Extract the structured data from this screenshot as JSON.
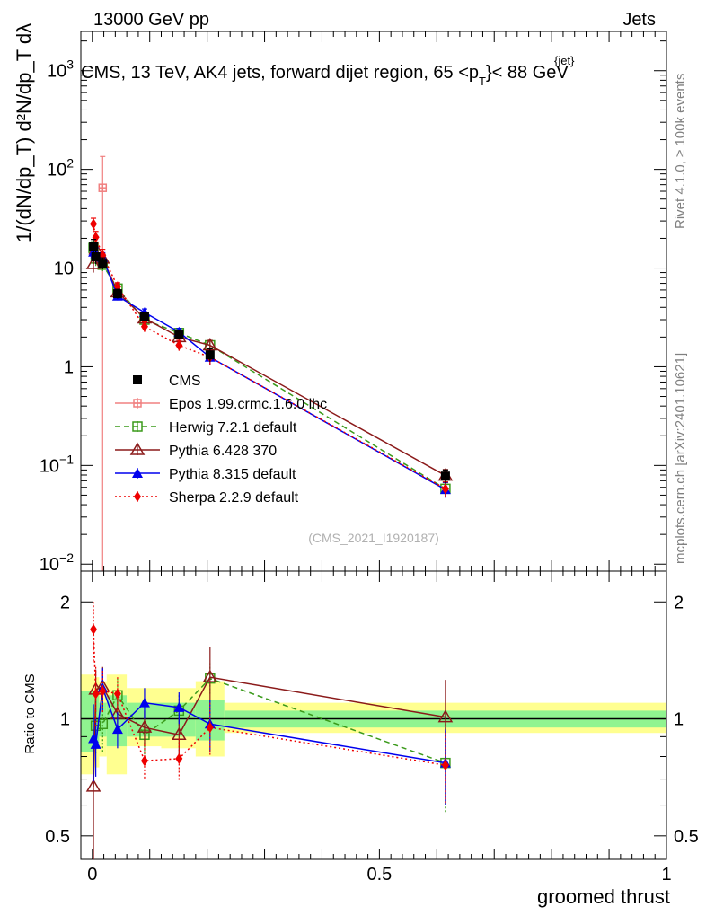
{
  "header": {
    "left": "13000 GeV pp",
    "right": "Jets",
    "title": "CMS, 13 TeV, AK4 jets, forward dijet region, 65 <p",
    "title_sup": "{jet}",
    "title_sub": "T",
    "title_end": "}< 88 GeV"
  },
  "side": {
    "rivet": "Rivet 4.1.0, ≥ 100k events",
    "mcplots": "mcplots.cern.ch [arXiv:2401.10621]"
  },
  "yaxis_top_label": "1/(dN/dp_T) d²N/dp_T dλ",
  "analysis_tag": "(CMS_2021_I1920187)",
  "colors": {
    "cms": "#000000",
    "epos": "#f08080",
    "herwig": "#3a9a1a",
    "pythia6": "#8b1a1a",
    "pythia8": "#0000ee",
    "sherpa": "#ee0000",
    "band_inner": "#90f490",
    "band_outer": "#ffff90"
  },
  "chart_data": [
    {
      "type": "line",
      "panel": "main",
      "title": "CMS, 13 TeV, AK4 jets, forward dijet region, 65 <p_T^{jet}< 88 GeV",
      "xlabel": "groomed thrust",
      "ylabel": "1/(dN/dp_T) d²N/dp_T dλ",
      "yscale": "log",
      "xlim": [
        -0.02,
        1.0
      ],
      "ylim": [
        0.0085,
        2500
      ],
      "y_ticks": [
        {
          "v": 0.01,
          "base": "10",
          "exp": "−2"
        },
        {
          "v": 0.1,
          "base": "10",
          "exp": "−1"
        },
        {
          "v": 1,
          "base": "1",
          "exp": ""
        },
        {
          "v": 10,
          "base": "10",
          "exp": ""
        },
        {
          "v": 100,
          "base": "10",
          "exp": "2"
        },
        {
          "v": 1000,
          "base": "10",
          "exp": "3"
        }
      ],
      "legend": [
        "CMS",
        "Epos 1.99.crmc.1.6.0 lhc",
        "Herwig 7.2.1 default",
        "Pythia 6.428 370",
        "Pythia 8.315 default",
        "Sherpa 2.2.9 default"
      ],
      "series": [
        {
          "name": "CMS",
          "key": "cms",
          "x": [
            0.002,
            0.006,
            0.018,
            0.044,
            0.091,
            0.151,
            0.205,
            0.615
          ],
          "y": [
            16.5,
            13.0,
            11.2,
            5.5,
            3.25,
            2.1,
            1.32,
            0.078
          ],
          "err": [
            3,
            2,
            1.5,
            0.6,
            0.3,
            0.2,
            0.2,
            0.012
          ]
        },
        {
          "name": "Epos 1.99.crmc.1.6.0 lhc",
          "key": "epos",
          "x": [
            0.018
          ],
          "y": [
            65
          ],
          "err": [
            70
          ]
        },
        {
          "name": "Herwig 7.2.1 default",
          "key": "herwig",
          "x": [
            0.002,
            0.006,
            0.018,
            0.044,
            0.091,
            0.151,
            0.205,
            0.615
          ],
          "y": [
            16.0,
            12.5,
            10.8,
            6.2,
            3.0,
            2.2,
            1.65,
            0.058
          ],
          "err": [
            2.5,
            2,
            1.5,
            0.6,
            0.3,
            0.2,
            0.2,
            0.01
          ]
        },
        {
          "name": "Pythia 6.428 370",
          "key": "pythia6",
          "x": [
            0.002,
            0.006,
            0.018,
            0.044,
            0.091,
            0.151,
            0.205,
            0.615
          ],
          "y": [
            11.0,
            15.5,
            12.5,
            5.7,
            3.1,
            2.0,
            1.65,
            0.079
          ],
          "err": [
            2,
            2,
            1.5,
            0.5,
            0.3,
            0.2,
            0.2,
            0.012
          ]
        },
        {
          "name": "Pythia 8.315 default",
          "key": "pythia8",
          "x": [
            0.002,
            0.006,
            0.018,
            0.044,
            0.091,
            0.151,
            0.205,
            0.615
          ],
          "y": [
            14.5,
            14.0,
            12.8,
            5.2,
            3.55,
            2.25,
            1.25,
            0.057
          ],
          "err": [
            2,
            2,
            1.5,
            0.5,
            0.3,
            0.2,
            0.2,
            0.01
          ]
        },
        {
          "name": "Sherpa 2.2.9 default",
          "key": "sherpa",
          "x": [
            0.002,
            0.006,
            0.018,
            0.044,
            0.091,
            0.151,
            0.205,
            0.615
          ],
          "y": [
            28.0,
            20.5,
            13.5,
            6.5,
            2.55,
            1.65,
            1.25,
            0.058
          ],
          "err": [
            4,
            3,
            2,
            0.6,
            0.3,
            0.2,
            0.2,
            0.01
          ]
        }
      ]
    },
    {
      "type": "line",
      "panel": "ratio",
      "xlabel": "groomed thrust",
      "ylabel": "Ratio to CMS",
      "yscale": "log",
      "xlim": [
        -0.02,
        1.0
      ],
      "ylim": [
        0.435,
        2.4
      ],
      "x_ticks": [
        {
          "v": 0,
          "label": "0"
        },
        {
          "v": 0.5,
          "label": "0.5"
        },
        {
          "v": 1,
          "label": "1"
        }
      ],
      "y_ticks": [
        {
          "v": 0.5,
          "label": "0.5"
        },
        {
          "v": 1,
          "label": "1"
        },
        {
          "v": 2,
          "label": "2"
        }
      ],
      "bands": [
        {
          "x0": -0.02,
          "x1": 0.004,
          "inner": [
            0.82,
            1.18
          ],
          "outer": [
            0.72,
            1.3
          ]
        },
        {
          "x0": 0.004,
          "x1": 0.012,
          "inner": [
            0.85,
            1.15
          ],
          "outer": [
            0.75,
            1.28
          ]
        },
        {
          "x0": 0.012,
          "x1": 0.025,
          "inner": [
            0.9,
            1.1
          ],
          "outer": [
            0.8,
            1.25
          ]
        },
        {
          "x0": 0.025,
          "x1": 0.06,
          "inner": [
            0.85,
            1.15
          ],
          "outer": [
            0.72,
            1.3
          ]
        },
        {
          "x0": 0.06,
          "x1": 0.12,
          "inner": [
            0.9,
            1.1
          ],
          "outer": [
            0.85,
            1.2
          ]
        },
        {
          "x0": 0.12,
          "x1": 0.18,
          "inner": [
            0.9,
            1.1
          ],
          "outer": [
            0.84,
            1.2
          ]
        },
        {
          "x0": 0.18,
          "x1": 0.23,
          "inner": [
            0.88,
            1.12
          ],
          "outer": [
            0.8,
            1.25
          ]
        },
        {
          "x0": 0.23,
          "x1": 1.0,
          "inner": [
            0.95,
            1.05
          ],
          "outer": [
            0.92,
            1.1
          ]
        }
      ],
      "series": [
        {
          "name": "Epos 1.99.crmc.1.6.0 lhc",
          "key": "epos",
          "x": [],
          "y": [],
          "err": []
        },
        {
          "name": "Herwig 7.2.1 default",
          "key": "herwig",
          "x": [
            0.006,
            0.018,
            0.044,
            0.091,
            0.151,
            0.205,
            0.615
          ],
          "y": [
            0.96,
            0.97,
            1.15,
            0.91,
            1.05,
            1.27,
            0.77
          ],
          "err": [
            0.15,
            0.15,
            0.12,
            0.1,
            0.1,
            0.12,
            0.2
          ]
        },
        {
          "name": "Pythia 6.428 370",
          "key": "pythia6",
          "x": [
            0.002,
            0.006,
            0.018,
            0.044,
            0.091,
            0.151,
            0.205,
            0.615
          ],
          "y": [
            0.67,
            1.19,
            1.21,
            1.03,
            0.95,
            0.91,
            1.28,
            1.01
          ],
          "err": [
            0.25,
            0.15,
            0.15,
            0.1,
            0.1,
            0.1,
            0.25,
            0.25
          ]
        },
        {
          "name": "Pythia 8.315 default",
          "key": "pythia8",
          "x": [
            0.002,
            0.006,
            0.018,
            0.044,
            0.091,
            0.151,
            0.205,
            0.615
          ],
          "y": [
            0.89,
            0.86,
            1.2,
            0.94,
            1.1,
            1.07,
            0.97,
            0.77
          ],
          "err": [
            0.2,
            0.15,
            0.15,
            0.1,
            0.1,
            0.1,
            0.15,
            0.17
          ]
        },
        {
          "name": "Sherpa 2.2.9 default",
          "key": "sherpa",
          "x": [
            0.002,
            0.006,
            0.018,
            0.044,
            0.091,
            0.151,
            0.205,
            0.615
          ],
          "y": [
            1.7,
            1.16,
            1.18,
            1.16,
            0.78,
            0.79,
            0.95,
            0.76
          ],
          "err": [
            0.3,
            0.2,
            0.15,
            0.12,
            0.08,
            0.1,
            0.15,
            0.16
          ]
        }
      ]
    }
  ]
}
